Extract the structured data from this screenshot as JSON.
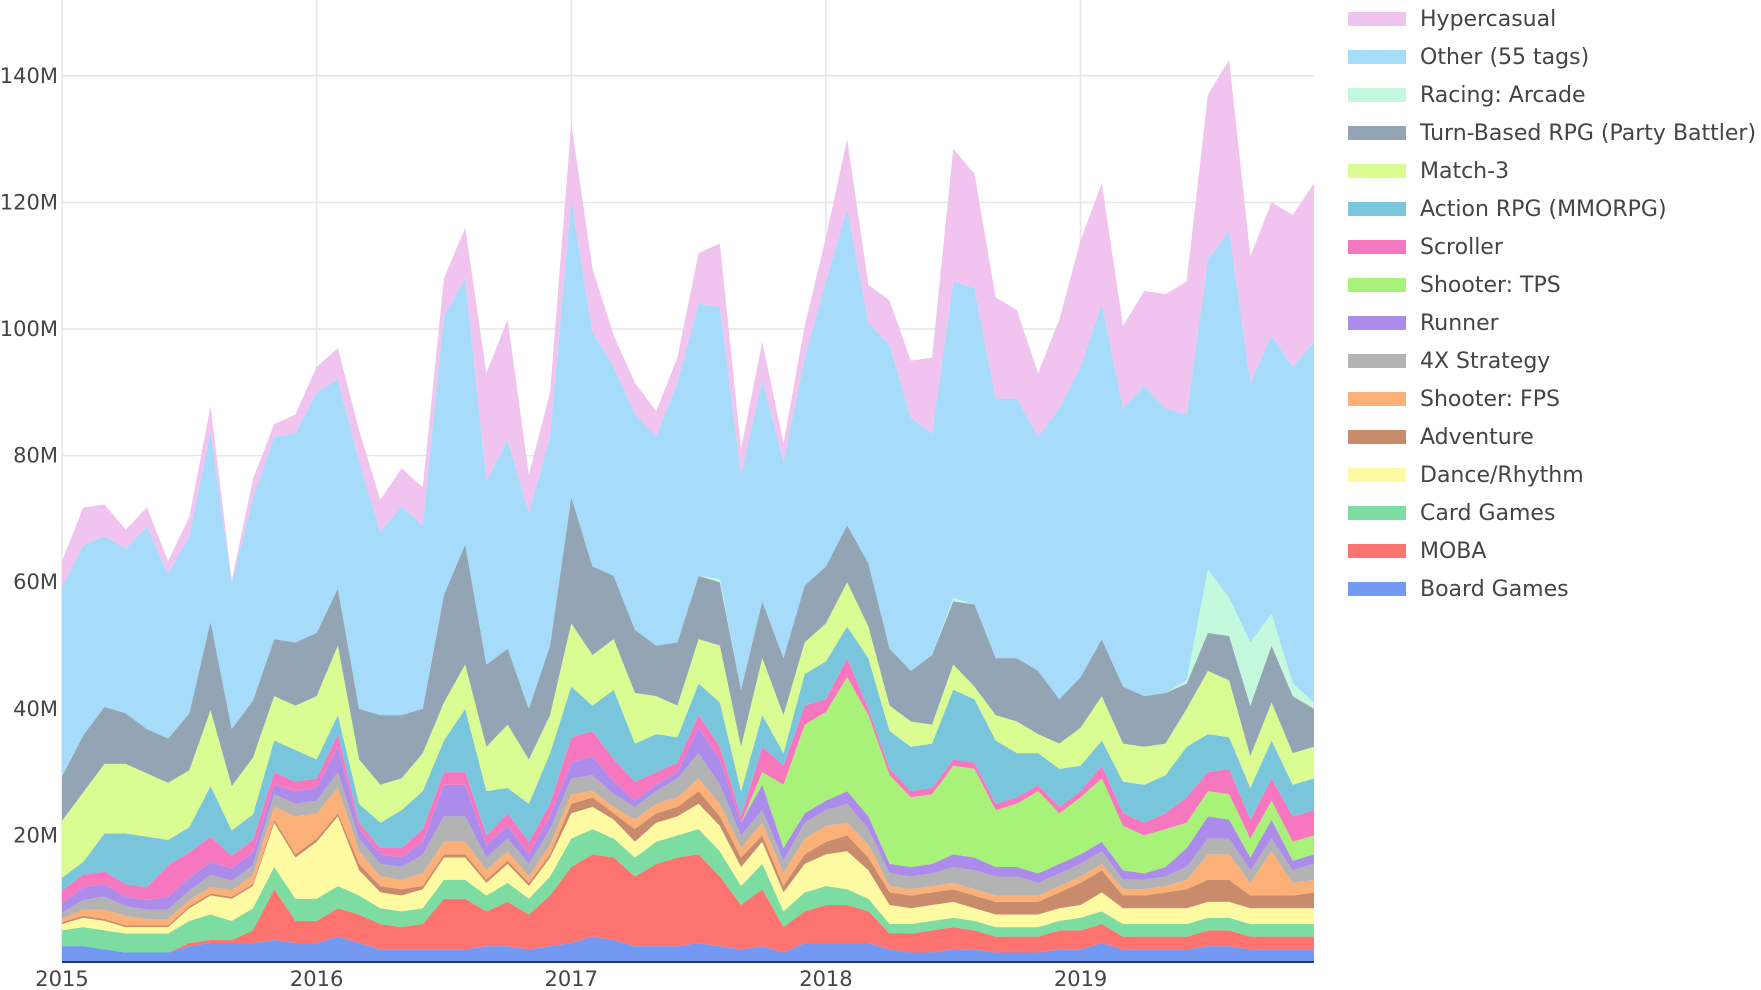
{
  "chart_data": {
    "type": "area",
    "stacked": true,
    "title": "",
    "xlabel": "",
    "ylabel": "",
    "ylim": [
      0,
      150000000
    ],
    "y_ticks": [
      {
        "value": 20000000,
        "label": "20M"
      },
      {
        "value": 40000000,
        "label": "40M"
      },
      {
        "value": 60000000,
        "label": "60M"
      },
      {
        "value": 80000000,
        "label": "80M"
      },
      {
        "value": 100000000,
        "label": "100M"
      },
      {
        "value": 120000000,
        "label": "120M"
      },
      {
        "value": 140000000,
        "label": "140M"
      }
    ],
    "x_ticks": [
      {
        "value": "2015-01",
        "label": "2015"
      },
      {
        "value": "2016-01",
        "label": "2016"
      },
      {
        "value": "2017-01",
        "label": "2017"
      },
      {
        "value": "2018-01",
        "label": "2018"
      },
      {
        "value": "2019-01",
        "label": "2019"
      }
    ],
    "grid": true,
    "legend_position": "right",
    "value_unit": "millions",
    "x": [
      "2015-01",
      "2015-02",
      "2015-03",
      "2015-04",
      "2015-05",
      "2015-06",
      "2015-07",
      "2015-08",
      "2015-09",
      "2015-10",
      "2015-11",
      "2015-12",
      "2016-01",
      "2016-02",
      "2016-03",
      "2016-04",
      "2016-05",
      "2016-06",
      "2016-07",
      "2016-08",
      "2016-09",
      "2016-10",
      "2016-11",
      "2016-12",
      "2017-01",
      "2017-02",
      "2017-03",
      "2017-04",
      "2017-05",
      "2017-06",
      "2017-07",
      "2017-08",
      "2017-09",
      "2017-10",
      "2017-11",
      "2017-12",
      "2018-01",
      "2018-02",
      "2018-03",
      "2018-04",
      "2018-05",
      "2018-06",
      "2018-07",
      "2018-08",
      "2018-09",
      "2018-10",
      "2018-11",
      "2018-12",
      "2019-01",
      "2019-02",
      "2019-03",
      "2019-04",
      "2019-05",
      "2019-06",
      "2019-07",
      "2019-08",
      "2019-09",
      "2019-10",
      "2019-11",
      "2019-12"
    ],
    "series": [
      {
        "name": "Board Games",
        "color": "#7399f2",
        "values": [
          2.5,
          2.5,
          2,
          1.5,
          1.5,
          1.5,
          2.5,
          3,
          3,
          3,
          3.5,
          3,
          3,
          4,
          3,
          2,
          2,
          2,
          2,
          2,
          2.5,
          2.5,
          2,
          2.5,
          3,
          4,
          3.5,
          2.5,
          2.5,
          2.5,
          3,
          2.5,
          2,
          2.5,
          1.5,
          3,
          3,
          3,
          3,
          2,
          1.5,
          1.5,
          2,
          2,
          1.5,
          1.5,
          1.5,
          2,
          2,
          3,
          2,
          2,
          2,
          2,
          2.5,
          2.5,
          2,
          2,
          2,
          2
        ]
      },
      {
        "name": "MOBA",
        "color": "#fc736f",
        "values": [
          0,
          0,
          0,
          0,
          0,
          0,
          0.5,
          0.5,
          0.5,
          2,
          8,
          3.5,
          3.5,
          4.5,
          4.5,
          4,
          3.5,
          4,
          8,
          8,
          5.5,
          7,
          5.5,
          8,
          12,
          13,
          13,
          11,
          13,
          14,
          14,
          11,
          7,
          9,
          4,
          5,
          6,
          6,
          5,
          2.5,
          3,
          3.5,
          3.5,
          3,
          2.5,
          2.5,
          2.5,
          3,
          3,
          3,
          2,
          2,
          2,
          2,
          2.5,
          2.5,
          2,
          2,
          2,
          2
        ]
      },
      {
        "name": "Card Games",
        "color": "#7cdca1",
        "values": [
          2.5,
          3,
          3,
          3,
          3,
          3,
          3.5,
          4,
          3,
          3.5,
          3.5,
          3.5,
          3.5,
          3.5,
          3,
          2.5,
          2.5,
          2.5,
          3,
          3,
          2.5,
          3,
          2.5,
          3,
          4.5,
          4,
          3,
          3,
          3.5,
          3.5,
          4,
          4,
          3,
          4,
          2.5,
          3,
          3,
          2.5,
          2,
          1.5,
          1.5,
          1.5,
          1.5,
          1.5,
          1.5,
          1.5,
          1.5,
          1.5,
          2,
          2,
          2,
          2,
          2,
          2,
          2,
          2,
          2,
          2,
          2,
          2
        ]
      },
      {
        "name": "Dance/Rhythm",
        "color": "#fefaa1",
        "values": [
          1,
          1.5,
          1.5,
          1,
          1,
          1,
          2,
          3,
          3.5,
          3.5,
          7,
          6.5,
          9,
          11,
          4,
          2.5,
          2.5,
          3,
          3.5,
          3.5,
          2,
          3,
          2,
          3,
          4,
          3.5,
          3,
          2.5,
          3,
          3,
          4,
          4,
          3,
          3.5,
          3,
          4.5,
          5,
          6,
          4.5,
          3,
          2.5,
          2.5,
          2.5,
          2,
          2,
          2,
          2,
          2,
          2,
          3,
          2.5,
          2.5,
          2.5,
          2.5,
          2.5,
          2.5,
          2.5,
          2.5,
          2.5,
          2.5
        ]
      },
      {
        "name": "Adventure",
        "color": "#c88c6c",
        "values": [
          0.3,
          0.3,
          0.3,
          0.3,
          0.3,
          0.3,
          0.3,
          0.3,
          0.3,
          0.3,
          0.5,
          0.5,
          0.5,
          0.5,
          1,
          1,
          1,
          0.5,
          0.5,
          0.5,
          0.5,
          0.5,
          0.5,
          0.5,
          1.5,
          1.5,
          1,
          2,
          1.5,
          1.5,
          2,
          1.5,
          1.5,
          1,
          1,
          1.5,
          2,
          2.5,
          2,
          2,
          2,
          2,
          2,
          2,
          2,
          2,
          2,
          2.5,
          3.5,
          3.5,
          2,
          2,
          2.5,
          3,
          3.5,
          3.5,
          2,
          2,
          2,
          2.5
        ]
      },
      {
        "name": "Shooter: FPS",
        "color": "#fbb077",
        "values": [
          0.5,
          1,
          1.5,
          1.5,
          1,
          1,
          1,
          1,
          1,
          1.5,
          2,
          6,
          4,
          4,
          2,
          1.5,
          1.5,
          2,
          2,
          2,
          1.5,
          1.5,
          1,
          1.5,
          1.5,
          1,
          1,
          1.5,
          1.5,
          1.5,
          2,
          2,
          1.5,
          2,
          2,
          2.5,
          2.5,
          2,
          2,
          1,
          1,
          1,
          1,
          1,
          1,
          1,
          1,
          1,
          1,
          1,
          1,
          1,
          1,
          1.5,
          4,
          4,
          2,
          7,
          2,
          2
        ]
      },
      {
        "name": "4X Strategy",
        "color": "#b3b3b3",
        "values": [
          1,
          1.5,
          2,
          1.5,
          1.5,
          1.5,
          1.5,
          2,
          1.5,
          1.5,
          2,
          2,
          2,
          2.5,
          2,
          2,
          2,
          3,
          4,
          4,
          2,
          2,
          2,
          2.5,
          2.5,
          2.5,
          2,
          2,
          2,
          3,
          4,
          3,
          2,
          2,
          2,
          2.5,
          2.5,
          3,
          2.5,
          2,
          2,
          2,
          2.5,
          3,
          3,
          3,
          2,
          2,
          2,
          2,
          1.5,
          1.5,
          1.5,
          2,
          2.5,
          2.5,
          2,
          2,
          2,
          2.5
        ]
      },
      {
        "name": "Runner",
        "color": "#ab8ceb",
        "values": [
          1.5,
          2,
          2,
          1.5,
          1.5,
          2,
          2,
          2,
          2,
          2,
          1.5,
          2,
          2,
          4,
          1.5,
          1.5,
          1.5,
          2,
          5,
          5,
          2,
          2,
          1.5,
          2,
          2.5,
          3,
          2,
          1,
          1,
          1,
          4,
          4,
          2,
          4,
          2,
          1.5,
          1.5,
          2,
          2,
          1.5,
          1.5,
          1.5,
          2,
          2,
          1.5,
          1.5,
          1.5,
          1.5,
          1.5,
          1.5,
          1.5,
          1,
          1.5,
          3,
          3.5,
          3,
          2,
          3,
          1.5,
          1.5
        ]
      },
      {
        "name": "Shooter: TPS",
        "color": "#a9f279",
        "values": [
          0,
          0,
          0,
          0,
          0,
          0,
          0,
          0,
          0,
          0,
          0,
          0,
          0,
          0,
          0,
          0,
          0,
          0,
          0,
          0,
          0,
          0,
          0,
          0,
          0,
          0,
          0,
          0,
          0,
          0,
          0,
          0,
          0,
          2,
          10,
          14,
          14,
          18,
          16,
          14,
          11,
          11,
          14,
          14,
          9,
          10,
          13,
          8,
          9,
          10,
          7,
          6,
          6,
          4,
          4,
          4,
          3,
          3,
          3,
          3
        ]
      },
      {
        "name": "Scroller",
        "color": "#f777be",
        "values": [
          2,
          2,
          2,
          2,
          2,
          5,
          4,
          4,
          2,
          2,
          2,
          1.5,
          1.5,
          2,
          1,
          1,
          1.5,
          2,
          2,
          2,
          1.5,
          2,
          2,
          2,
          4,
          4,
          3.5,
          3,
          2,
          1.5,
          2,
          2,
          1,
          4,
          3,
          3,
          2,
          3,
          1,
          1,
          1,
          1,
          1,
          1,
          1,
          1,
          1,
          1,
          1,
          2,
          2,
          2,
          2.5,
          4,
          3,
          4,
          3,
          3.5,
          4,
          4
        ]
      },
      {
        "name": "Action RPG (MMORPG)",
        "color": "#79c6dc",
        "values": [
          2,
          2,
          6,
          8,
          8,
          4,
          4,
          8,
          4,
          4,
          5,
          5,
          3,
          3,
          3,
          4,
          6,
          6,
          5,
          10,
          7,
          4,
          6,
          8,
          8,
          4,
          11,
          6,
          6,
          4,
          5,
          7,
          4,
          5,
          2,
          5,
          6,
          5,
          8,
          6,
          7,
          7,
          11,
          10,
          10,
          7,
          5,
          6,
          4,
          4,
          5,
          6,
          6,
          8,
          6,
          5,
          5,
          6,
          5,
          5
        ]
      },
      {
        "name": "Match-3",
        "color": "#dbfc93",
        "values": [
          9,
          11,
          11,
          11,
          10,
          9,
          9,
          12,
          7,
          9,
          7,
          7,
          10,
          11,
          7,
          6,
          5,
          6,
          6,
          7,
          7,
          10,
          7,
          6,
          10,
          8,
          8,
          8,
          6,
          5,
          7,
          9,
          7,
          9,
          6,
          5,
          6,
          7,
          5,
          4,
          4,
          3,
          4,
          2,
          4,
          5,
          3,
          4,
          6,
          7,
          6,
          6,
          5,
          6,
          10,
          9,
          5,
          6,
          5,
          5
        ]
      },
      {
        "name": "Turn-Based RPG (Party Battler)",
        "color": "#93a4b5",
        "values": [
          7,
          9,
          9,
          8,
          7,
          7,
          9,
          14,
          9,
          9,
          9,
          10,
          10,
          9,
          8,
          11,
          10,
          7,
          17,
          19,
          13,
          12,
          8,
          11,
          20,
          14,
          10,
          10,
          8,
          10,
          10,
          10,
          9,
          9,
          9,
          9,
          9,
          9,
          10,
          9,
          8,
          11,
          10,
          13,
          9,
          10,
          10,
          7,
          8,
          9,
          9,
          8,
          8,
          4,
          6,
          7,
          8,
          9,
          9,
          6
        ]
      },
      {
        "name": "Racing: Arcade",
        "color": "#c5f9de",
        "values": [
          0,
          0,
          0,
          0,
          0,
          0,
          0,
          0,
          0,
          0,
          0,
          0,
          0,
          0,
          0,
          0,
          0,
          0,
          0,
          0,
          0,
          0,
          0,
          0,
          0,
          0,
          0,
          0,
          0,
          0,
          0,
          0.5,
          0,
          0,
          0,
          0,
          0,
          0,
          0,
          0,
          0,
          0,
          0.5,
          0,
          0,
          0,
          0,
          0,
          0,
          0,
          0,
          0,
          0,
          0.5,
          10,
          6,
          10,
          5,
          2,
          1
        ]
      },
      {
        "name": "Other (55 tags)",
        "color": "#a6dcf9",
        "values": [
          30,
          30,
          27,
          26,
          32,
          26,
          28,
          30,
          23,
          32,
          32,
          33,
          38,
          33,
          39,
          29,
          33,
          29,
          44,
          42,
          29,
          33,
          31,
          33,
          47,
          37,
          33,
          34,
          33,
          41,
          43,
          43,
          34,
          35,
          31,
          36,
          45,
          50,
          38,
          48,
          40,
          35,
          50,
          50,
          41,
          41,
          37,
          46,
          49,
          53,
          44,
          49,
          45,
          42,
          49,
          58,
          41,
          44,
          50,
          57
        ]
      },
      {
        "name": "Hypercasual",
        "color": "#f1c3ef",
        "values": [
          4,
          6,
          5,
          3,
          3,
          2,
          3,
          4,
          0.5,
          3,
          2,
          3,
          4,
          5,
          5,
          5,
          6,
          6,
          6,
          8,
          17,
          19,
          6,
          7,
          12,
          10,
          5,
          5,
          4,
          4,
          8,
          10,
          4,
          6,
          3,
          5,
          7,
          11,
          6,
          7,
          9,
          12,
          21,
          18,
          16,
          14,
          10,
          14,
          20,
          19,
          13,
          15,
          18,
          21,
          26,
          27,
          20,
          21,
          24,
          25
        ]
      }
    ]
  }
}
